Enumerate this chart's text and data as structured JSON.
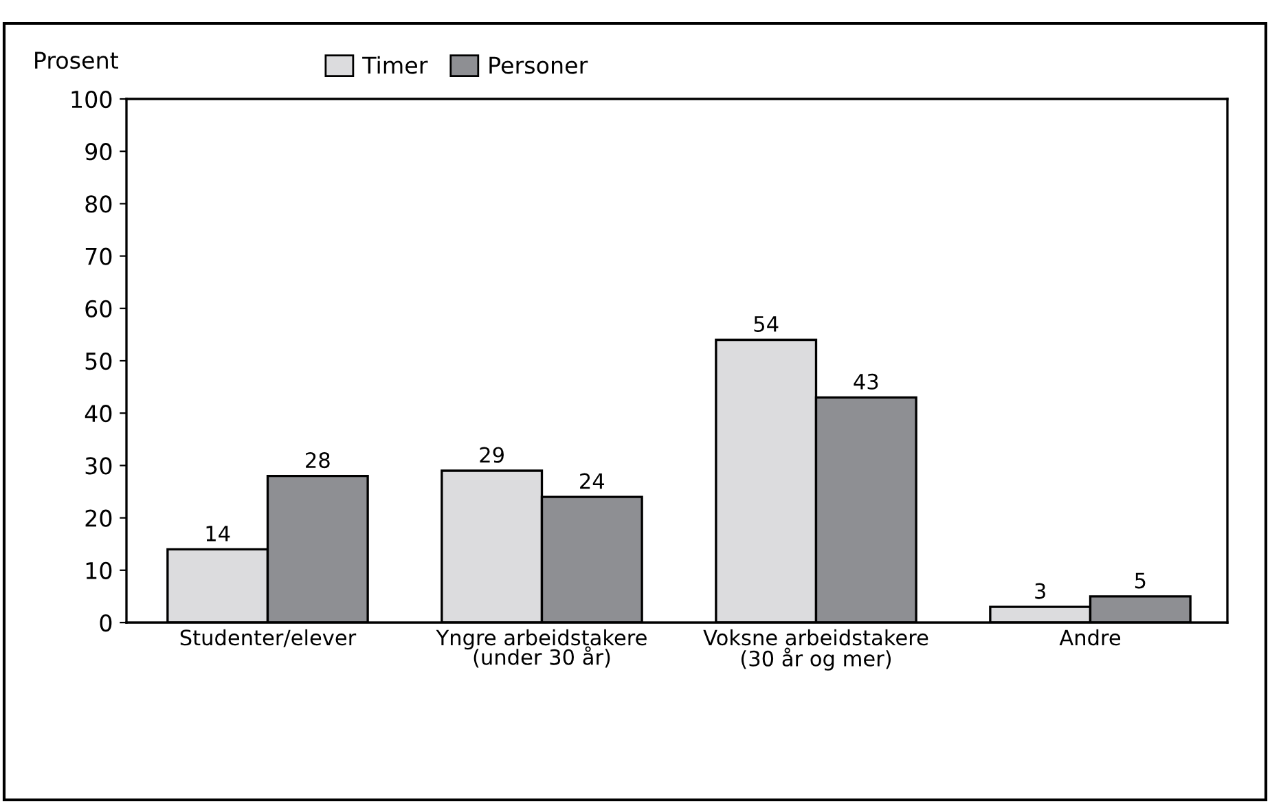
{
  "chart_data": {
    "type": "bar",
    "ylabel": "Prosent",
    "categories": [
      "Studenter/elever",
      "Yngre arbeidstakere\n(under 30 år)",
      "Voksne arbeidstakere\n(30 år og mer)",
      "Andre"
    ],
    "series": [
      {
        "name": "Timer",
        "color": "#dcdcde",
        "values": [
          14,
          29,
          54,
          3
        ]
      },
      {
        "name": "Personer",
        "color": "#8e8f93",
        "values": [
          28,
          24,
          43,
          5
        ]
      }
    ],
    "ylim": [
      0,
      100
    ],
    "yticks": [
      0,
      10,
      20,
      30,
      40,
      50,
      60,
      70,
      80,
      90,
      100
    ],
    "data_labels": true,
    "grid": false,
    "legend": "top"
  }
}
